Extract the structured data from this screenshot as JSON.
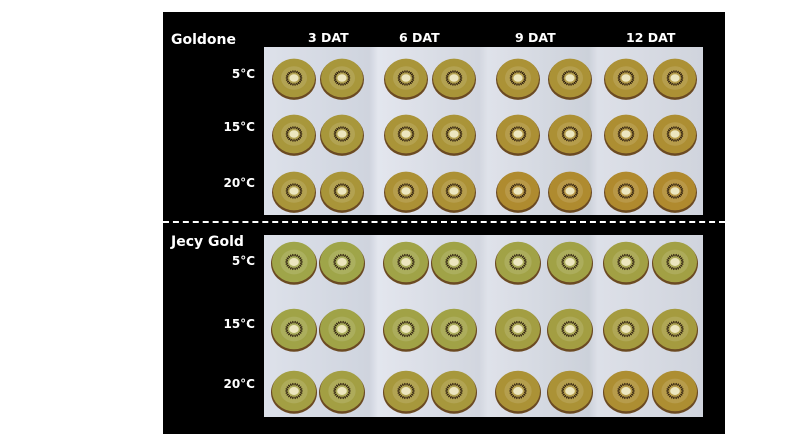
{
  "colors": {
    "frame": "#000000",
    "label_text": "#ffffff",
    "tray_background": "#d7dbe3",
    "kiwi_flesh_green": "#9ea64a",
    "kiwi_flesh_gold": "#b08a2e",
    "kiwi_core": "#ece6bf",
    "kiwi_skin": "#6b4a22"
  },
  "columns": [
    "3 DAT",
    "6 DAT",
    "9 DAT",
    "12 DAT"
  ],
  "panels": [
    {
      "title": "Goldone",
      "rows": [
        "5°C",
        "15°C",
        "20°C"
      ]
    },
    {
      "title": "Jecy Gold",
      "rows": [
        "5°C",
        "15°C",
        "20°C"
      ]
    }
  ]
}
